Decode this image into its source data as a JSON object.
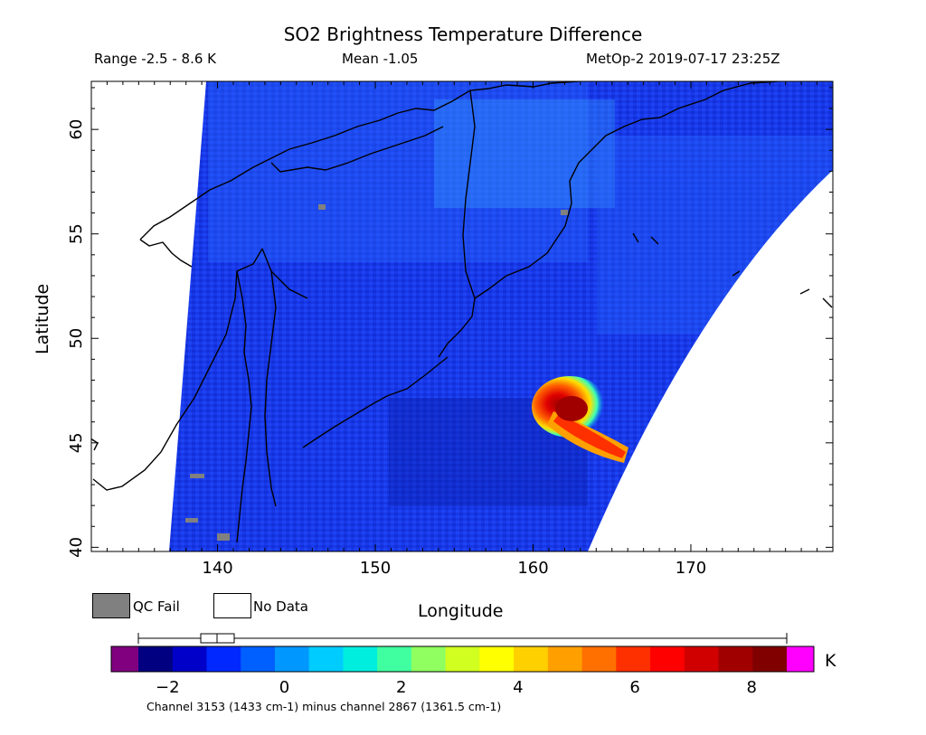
{
  "header": {
    "title": "SO2 Brightness Temperature Difference",
    "range": "Range -2.5 - 8.6 K",
    "mean": "Mean -1.05",
    "satellite_time": "MetOp-2 2019-07-17 23:25Z"
  },
  "axes": {
    "x_label": "Longitude",
    "y_label": "Latitude",
    "x_ticks": [
      "140",
      "150",
      "160",
      "170"
    ],
    "y_ticks": [
      "40",
      "45",
      "50",
      "55",
      "60"
    ],
    "x_range": [
      132,
      179
    ],
    "y_range": [
      39.8,
      62.3
    ]
  },
  "legend": {
    "qc_fail": "QC Fail",
    "no_data": "No Data",
    "qc_color": "#808080",
    "no_data_color": "#ffffff"
  },
  "colorbar": {
    "unit": "K",
    "ticks": [
      "-2",
      "0",
      "2",
      "4",
      "6",
      "8"
    ],
    "range": [
      -2.5,
      8.6
    ],
    "under_color": "#800080",
    "over_color": "#ff00ff",
    "colors": [
      "#000080",
      "#0000c8",
      "#0028ff",
      "#0060ff",
      "#0098ff",
      "#00ccff",
      "#00eedd",
      "#40ffa0",
      "#90ff60",
      "#d0ff20",
      "#ffff00",
      "#ffd000",
      "#ffa000",
      "#ff7000",
      "#ff3000",
      "#ff0000",
      "#d00000",
      "#a00000",
      "#800000"
    ],
    "boxplot_label": "mean and spread of scene"
  },
  "caption": "Channel 3153 (1433 cm-1) minus channel 2867 (1361.5 cm-1)",
  "map": {
    "background_color": "#1a3cf0",
    "coastline_color": "#000000",
    "feature": "SO2 plume near 162E 46N"
  }
}
